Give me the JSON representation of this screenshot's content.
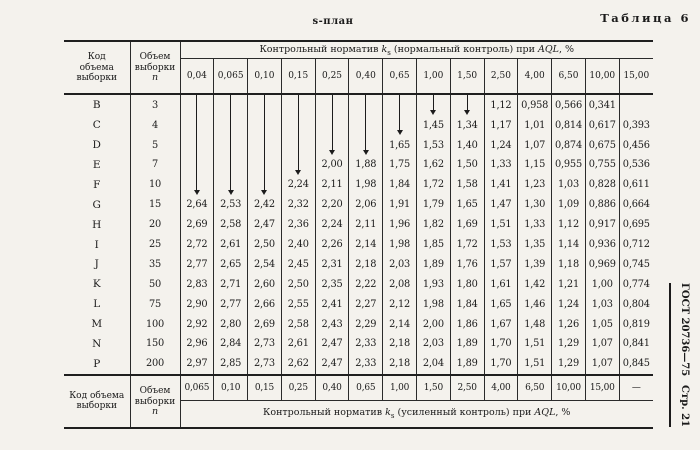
{
  "page": {
    "table_label": "Таблица 6",
    "plan_title": "s-план",
    "side_std": "ГОСТ 20736—75",
    "side_page": "Стр. 21"
  },
  "table": {
    "header": {
      "code_label": "Код\nобъема\nвыборки",
      "n_label": "Объем\nвыборки",
      "n_symbol": "n",
      "normal_title": {
        "pre": "Контрольный норматив",
        "k": "k",
        "sub": "s",
        "mid": "(нормальный контроль) при",
        "aql": "AQL",
        "tail": ", %"
      },
      "aql_normal": [
        "0,04",
        "0,065",
        "0,10",
        "0,15",
        "0,25",
        "0,40",
        "0,65",
        "1,00",
        "1,50",
        "2,50",
        "4,00",
        "6,50",
        "10,00",
        "15,00"
      ]
    },
    "rows": [
      {
        "code": "B",
        "n": "3",
        "cells": [
          "line",
          "line",
          "line",
          "line",
          "line",
          "line",
          "line",
          "arrow",
          "arrow",
          "1,12",
          "0,958",
          "0,566",
          "0,341",
          ""
        ]
      },
      {
        "code": "C",
        "n": "4",
        "cells": [
          "line",
          "line",
          "line",
          "line",
          "line",
          "line",
          "arrow",
          "1,45",
          "1,34",
          "1,17",
          "1,01",
          "0,814",
          "0,617",
          "0,393"
        ]
      },
      {
        "code": "D",
        "n": "5",
        "cells": [
          "line",
          "line",
          "line",
          "line",
          "arrow",
          "arrow",
          "1,65",
          "1,53",
          "1,40",
          "1,24",
          "1,07",
          "0,874",
          "0,675",
          "0,456"
        ]
      },
      {
        "code": "E",
        "n": "7",
        "cells": [
          "line",
          "line",
          "line",
          "arrow",
          "2,00",
          "1,88",
          "1,75",
          "1,62",
          "1,50",
          "1,33",
          "1,15",
          "0,955",
          "0,755",
          "0,536"
        ]
      },
      {
        "code": "F",
        "n": "10",
        "cells": [
          "arrow",
          "arrow",
          "arrow",
          "2,24",
          "2,11",
          "1,98",
          "1,84",
          "1,72",
          "1,58",
          "1,41",
          "1,23",
          "1,03",
          "0,828",
          "0,611"
        ]
      },
      {
        "code": "G",
        "n": "15",
        "cells": [
          "2,64",
          "2,53",
          "2,42",
          "2,32",
          "2,20",
          "2,06",
          "1,91",
          "1,79",
          "1,65",
          "1,47",
          "1,30",
          "1,09",
          "0,886",
          "0,664"
        ]
      },
      {
        "code": "H",
        "n": "20",
        "cells": [
          "2,69",
          "2,58",
          "2,47",
          "2,36",
          "2,24",
          "2,11",
          "1,96",
          "1,82",
          "1,69",
          "1,51",
          "1,33",
          "1,12",
          "0,917",
          "0,695"
        ]
      },
      {
        "code": "I",
        "n": "25",
        "cells": [
          "2,72",
          "2,61",
          "2,50",
          "2,40",
          "2,26",
          "2,14",
          "1,98",
          "1,85",
          "1,72",
          "1,53",
          "1,35",
          "1,14",
          "0,936",
          "0,712"
        ]
      },
      {
        "code": "J",
        "n": "35",
        "cells": [
          "2,77",
          "2,65",
          "2,54",
          "2,45",
          "2,31",
          "2,18",
          "2,03",
          "1,89",
          "1,76",
          "1,57",
          "1,39",
          "1,18",
          "0,969",
          "0,745"
        ]
      },
      {
        "code": "K",
        "n": "50",
        "cells": [
          "2,83",
          "2,71",
          "2,60",
          "2,50",
          "2,35",
          "2,22",
          "2,08",
          "1,93",
          "1,80",
          "1,61",
          "1,42",
          "1,21",
          "1,00",
          "0,774"
        ]
      },
      {
        "code": "L",
        "n": "75",
        "cells": [
          "2,90",
          "2,77",
          "2,66",
          "2,55",
          "2,41",
          "2,27",
          "2,12",
          "1,98",
          "1,84",
          "1,65",
          "1,46",
          "1,24",
          "1,03",
          "0,804"
        ]
      },
      {
        "code": "M",
        "n": "100",
        "cells": [
          "2,92",
          "2,80",
          "2,69",
          "2,58",
          "2,43",
          "2,29",
          "2,14",
          "2,00",
          "1,86",
          "1,67",
          "1,48",
          "1,26",
          "1,05",
          "0,819"
        ]
      },
      {
        "code": "N",
        "n": "150",
        "cells": [
          "2,96",
          "2,84",
          "2,73",
          "2,61",
          "2,47",
          "2,33",
          "2,18",
          "2,03",
          "1,89",
          "1,70",
          "1,51",
          "1,29",
          "1,07",
          "0,841"
        ]
      },
      {
        "code": "P",
        "n": "200",
        "cells": [
          "2,97",
          "2,85",
          "2,73",
          "2,62",
          "2,47",
          "2,33",
          "2,18",
          "2,04",
          "1,89",
          "1,70",
          "1,51",
          "1,29",
          "1,07",
          "0,845"
        ]
      }
    ],
    "footer": {
      "code_label": "Код объема\nвыборки",
      "n_label": "Объем\nвыборки",
      "n_symbol": "n",
      "aql_tightened": [
        "0,065",
        "0,10",
        "0,15",
        "0,25",
        "0,40",
        "0,65",
        "1,00",
        "1,50",
        "2,50",
        "4,00",
        "6,50",
        "10,00",
        "15,00",
        "—"
      ],
      "tightened_title": {
        "pre": "Контрольный норматив",
        "k": "k",
        "sub": "s",
        "mid": "(усиленный контроль) при",
        "aql": "AQL",
        "tail": ", %"
      }
    }
  }
}
